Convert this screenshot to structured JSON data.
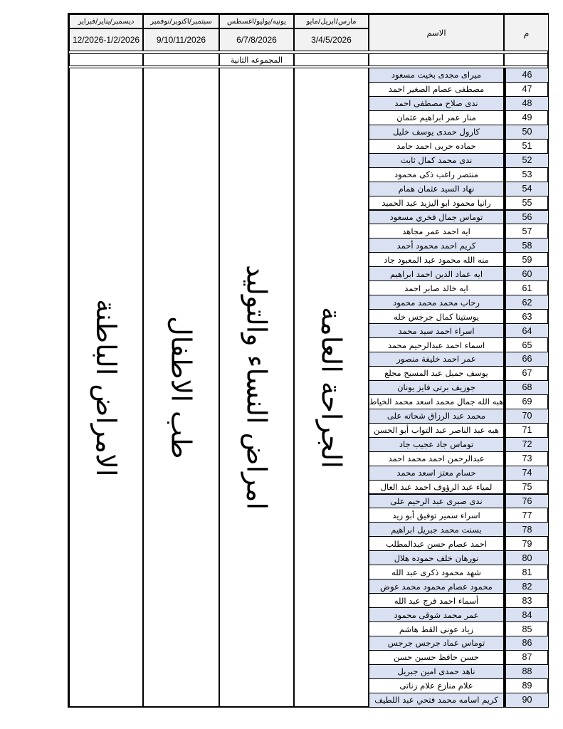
{
  "header": {
    "number_col": "م",
    "name_col": "الاسم",
    "periods": [
      {
        "months": "مارس/ابريل/مايو",
        "dates": "3/4/5/2026"
      },
      {
        "months": "يونيه/يوليو/اغسطس",
        "dates": "6/7/8/2026"
      },
      {
        "months": "سبتمبر/اكتوبر/نوفمبر",
        "dates": "9/10/11/2026"
      },
      {
        "months": "ديسمبر/يناير/فبراير",
        "dates": "12/2026-1/2/2026"
      }
    ],
    "group_label": "المجموعه الثانية"
  },
  "departments": [
    "الجراحة العامة",
    "امراض النساء والتوليد",
    "طب الاطفال",
    "الامراض الباطنة"
  ],
  "rows": [
    {
      "n": "46",
      "name": "ميراى مجدى بخيت مسعود"
    },
    {
      "n": "47",
      "name": "مصطفى عصام الصغير احمد"
    },
    {
      "n": "48",
      "name": "ندى صلاح مصطفى احمد"
    },
    {
      "n": "49",
      "name": "منار عمر ابراهيم عثمان"
    },
    {
      "n": "50",
      "name": "كارول حمدى يوسف خليل"
    },
    {
      "n": "51",
      "name": "حماده حربى احمد حامد"
    },
    {
      "n": "52",
      "name": "ندى محمد كمال ثابت"
    },
    {
      "n": "53",
      "name": "منتصر راغب ذكى محمود"
    },
    {
      "n": "54",
      "name": "نهاد السيد عثمان همام"
    },
    {
      "n": "55",
      "name": "رانيا محمود ابو اليزيد عبد الحميد"
    },
    {
      "n": "56",
      "name": "توماس جمال فخري مسعود"
    },
    {
      "n": "57",
      "name": "ايه احمد عمر مجاهد"
    },
    {
      "n": "58",
      "name": "كريم احمد محمود أحمد"
    },
    {
      "n": "59",
      "name": "منه الله محمود عبد المعبود جاد"
    },
    {
      "n": "60",
      "name": "ايه عماد الدين احمد ابراهيم"
    },
    {
      "n": "61",
      "name": "ايه خالد صابر احمد"
    },
    {
      "n": "62",
      "name": "رحاب محمد محمد محمود"
    },
    {
      "n": "63",
      "name": "يوستينا كمال جرجس خله"
    },
    {
      "n": "64",
      "name": "اسراء احمد سيد محمد"
    },
    {
      "n": "65",
      "name": "اسماء احمد عبدالرحيم محمد"
    },
    {
      "n": "66",
      "name": "عمر احمد خليفة منصور"
    },
    {
      "n": "67",
      "name": "يوسف جميل عبد المسيح مجلع"
    },
    {
      "n": "68",
      "name": "جوزيف برتى فايز يونان"
    },
    {
      "n": "69",
      "name": "هبه الله جمال محمد اسعد محمد الخياط"
    },
    {
      "n": "70",
      "name": "محمد عبد الرزاق شحاته على"
    },
    {
      "n": "71",
      "name": "هبه عبد الناصر عبد التواب أبو الحسن"
    },
    {
      "n": "72",
      "name": "توماس جاد عجيب جاد"
    },
    {
      "n": "73",
      "name": "عبدالرحمن احمد محمد احمد"
    },
    {
      "n": "74",
      "name": "حسام معتز اسعد محمد"
    },
    {
      "n": "75",
      "name": "لمياء عبد الرؤوف احمد عبد العال"
    },
    {
      "n": "76",
      "name": "ندى صبرى عبد الرحيم على"
    },
    {
      "n": "77",
      "name": "اسراء سمير توفيق أبو زيد"
    },
    {
      "n": "78",
      "name": "بسنت محمد جبريل ابراهيم"
    },
    {
      "n": "79",
      "name": "احمد عصام حسن عبدالمطلب"
    },
    {
      "n": "80",
      "name": "نورهان خلف حموده هلال"
    },
    {
      "n": "81",
      "name": "شهد محمود ذكرى عبد الله"
    },
    {
      "n": "82",
      "name": "محمود عصام محمود محمد عوض"
    },
    {
      "n": "83",
      "name": "أسماء احمد فرج عبد الله"
    },
    {
      "n": "84",
      "name": "عمر محمد شوقى محمود"
    },
    {
      "n": "85",
      "name": "زياد عونى القط هاشم"
    },
    {
      "n": "86",
      "name": "توماس عماد جرجس جرجس"
    },
    {
      "n": "87",
      "name": "حسن حافظ حسين حسن"
    },
    {
      "n": "88",
      "name": "ناهد حمدى امين جبريل"
    },
    {
      "n": "89",
      "name": "علام منازع علام زناتى"
    },
    {
      "n": "90",
      "name": "كريم اسامه محمد فتحي عبد اللطيف"
    }
  ],
  "colors": {
    "row_alt": "#d9e1f2",
    "header_bg": "#f2f2f2"
  }
}
